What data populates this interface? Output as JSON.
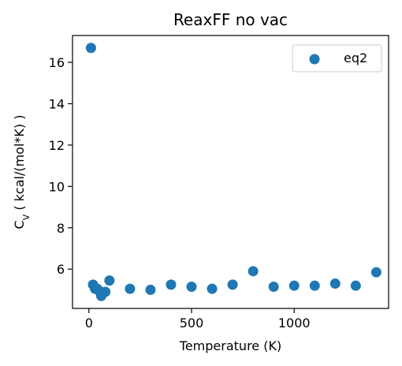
{
  "chart_data": {
    "type": "scatter",
    "title": "ReaxFF no vac",
    "xlabel": "Temperature (K)",
    "ylabel_prefix": "C",
    "ylabel_subscript": "V",
    "ylabel_suffix": " ( kcal/(mol*K) )",
    "xlim": [
      -80,
      1460
    ],
    "ylim": [
      4.1,
      17.3
    ],
    "x_ticks": [
      0,
      500,
      1000
    ],
    "y_ticks": [
      6,
      8,
      10,
      12,
      14,
      16
    ],
    "grid": false,
    "legend_position": "top-right",
    "series": [
      {
        "name": "eq2",
        "color": "#1f77b4",
        "x": [
          10,
          20,
          40,
          60,
          80,
          100,
          200,
          300,
          400,
          500,
          600,
          700,
          800,
          900,
          1000,
          1100,
          1200,
          1300,
          1400
        ],
        "y": [
          16.7,
          5.25,
          5.05,
          4.7,
          4.9,
          5.45,
          5.05,
          5.0,
          5.25,
          5.15,
          5.05,
          5.25,
          5.9,
          5.15,
          5.2,
          5.2,
          5.3,
          5.2,
          5.85
        ]
      }
    ],
    "extra_points": [
      {
        "x": 30,
        "y": 5.05
      },
      {
        "x": 50,
        "y": 4.95
      }
    ]
  }
}
